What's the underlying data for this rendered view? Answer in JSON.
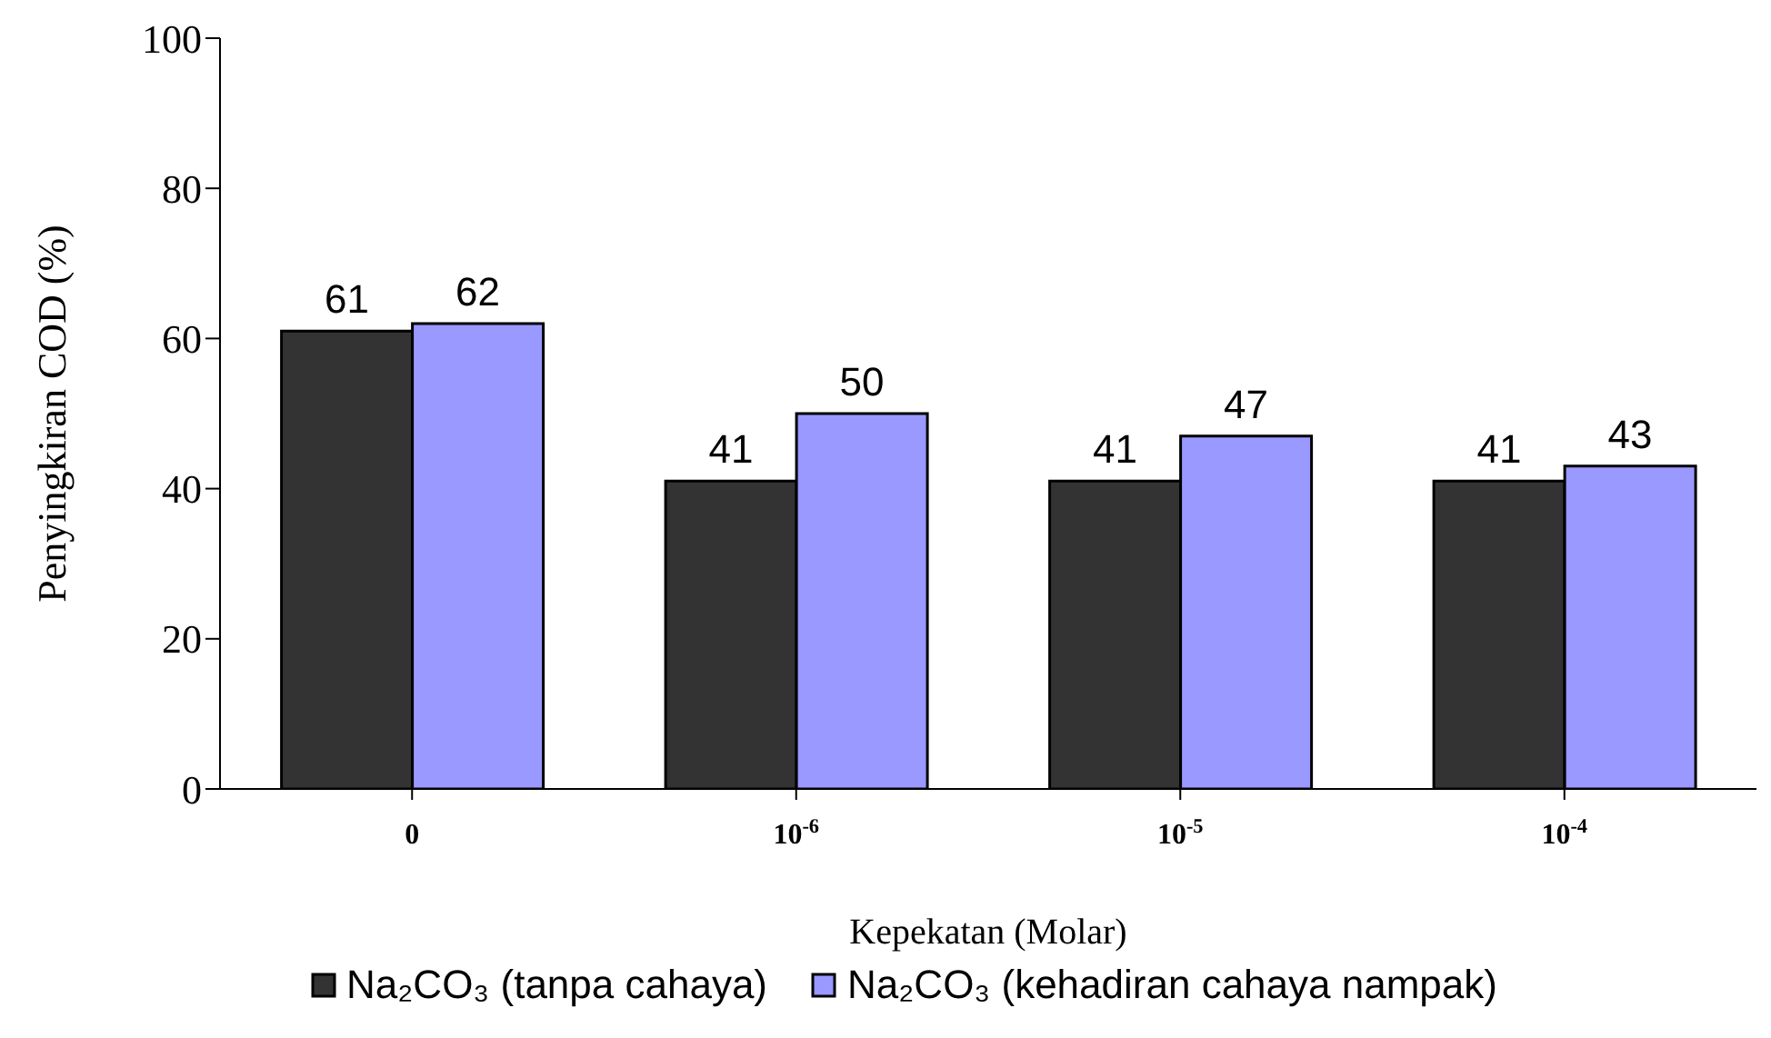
{
  "chart_data": {
    "type": "bar",
    "xlabel": "Kepekatan (Molar)",
    "ylabel": "Penyingkiran COD (%)",
    "categories": [
      "0",
      "10$^{-6}$",
      "10$^{-5}$",
      "10$^{-4}$"
    ],
    "series": [
      {
        "name": "Na₂CO₃ (tanpa cahaya)",
        "color": "#333333",
        "values": [
          61,
          41,
          41,
          41
        ]
      },
      {
        "name": "Na₂CO₃ (kehadiran cahaya nampak)",
        "color": "#9999ff",
        "values": [
          62,
          50,
          47,
          43
        ]
      }
    ],
    "ylim": [
      0,
      100
    ],
    "yticks": [
      0,
      20,
      40,
      60,
      80,
      100
    ],
    "legend": "bottom",
    "data_labels": true
  }
}
